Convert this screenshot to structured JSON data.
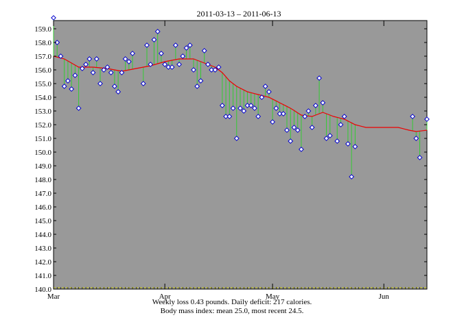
{
  "chart_data": {
    "type": "line",
    "title": "2011-03-13 – 2011-06-13",
    "footer": [
      "Weekly loss 0.43 pounds.  Daily deficit: 217 calories.",
      "Body mass index: mean 25.0, most recent 24.5."
    ],
    "xlim": [
      "2011-03-01",
      "2011-06-13"
    ],
    "ylim": [
      140.0,
      159.6
    ],
    "x_ticks": [
      {
        "date": "2011-03-01",
        "label": "Mar"
      },
      {
        "date": "2011-04-01",
        "label": "Apr"
      },
      {
        "date": "2011-05-01",
        "label": "May"
      },
      {
        "date": "2011-06-01",
        "label": "Jun"
      }
    ],
    "y_ticks": [
      "140.0",
      "141.0",
      "142.0",
      "143.0",
      "144.0",
      "145.0",
      "146.0",
      "147.0",
      "148.0",
      "149.0",
      "150.0",
      "151.0",
      "152.0",
      "153.0",
      "154.0",
      "155.0",
      "156.0",
      "157.0",
      "158.0",
      "159.0"
    ],
    "baseline": 140.1,
    "colors": {
      "background": "#999999",
      "trend": "#ee0000",
      "stem": "#33cc33",
      "marker_fill": "#ffffff",
      "marker_edge": "#0000cc",
      "baseline": "#cccc00"
    },
    "series": [
      {
        "kind": "scatter",
        "points": [
          [
            "2011-03-01",
            159.8
          ],
          [
            "2011-03-02",
            158.0
          ],
          [
            "2011-03-03",
            157.0
          ],
          [
            "2011-03-04",
            154.8
          ],
          [
            "2011-03-05",
            155.2
          ],
          [
            "2011-03-06",
            154.6
          ],
          [
            "2011-03-07",
            155.6
          ],
          [
            "2011-03-08",
            153.2
          ],
          [
            "2011-03-09",
            156.1
          ],
          [
            "2011-03-10",
            156.4
          ],
          [
            "2011-03-11",
            156.8
          ],
          [
            "2011-03-12",
            155.8
          ],
          [
            "2011-03-13",
            156.8
          ],
          [
            "2011-03-14",
            155.0
          ],
          [
            "2011-03-15",
            156.0
          ],
          [
            "2011-03-16",
            156.2
          ],
          [
            "2011-03-17",
            155.8
          ],
          [
            "2011-03-18",
            154.8
          ],
          [
            "2011-03-19",
            154.4
          ],
          [
            "2011-03-20",
            155.8
          ],
          [
            "2011-03-21",
            156.8
          ],
          [
            "2011-03-22",
            156.6
          ],
          [
            "2011-03-23",
            157.2
          ],
          [
            "2011-03-26",
            155.0
          ],
          [
            "2011-03-27",
            157.8
          ],
          [
            "2011-03-28",
            156.4
          ],
          [
            "2011-03-29",
            158.2
          ],
          [
            "2011-03-30",
            158.8
          ],
          [
            "2011-03-31",
            157.2
          ],
          [
            "2011-04-01",
            156.4
          ],
          [
            "2011-04-02",
            156.2
          ],
          [
            "2011-04-03",
            156.2
          ],
          [
            "2011-04-04",
            157.8
          ],
          [
            "2011-04-05",
            156.4
          ],
          [
            "2011-04-06",
            157.0
          ],
          [
            "2011-04-07",
            157.6
          ],
          [
            "2011-04-08",
            157.8
          ],
          [
            "2011-04-09",
            156.0
          ],
          [
            "2011-04-10",
            154.8
          ],
          [
            "2011-04-11",
            155.2
          ],
          [
            "2011-04-12",
            157.4
          ],
          [
            "2011-04-13",
            156.4
          ],
          [
            "2011-04-14",
            156.0
          ],
          [
            "2011-04-15",
            156.0
          ],
          [
            "2011-04-16",
            156.2
          ],
          [
            "2011-04-17",
            153.4
          ],
          [
            "2011-04-18",
            152.6
          ],
          [
            "2011-04-19",
            152.6
          ],
          [
            "2011-04-20",
            153.2
          ],
          [
            "2011-04-21",
            151.0
          ],
          [
            "2011-04-22",
            153.2
          ],
          [
            "2011-04-23",
            153.0
          ],
          [
            "2011-04-24",
            153.4
          ],
          [
            "2011-04-25",
            153.4
          ],
          [
            "2011-04-26",
            153.2
          ],
          [
            "2011-04-27",
            152.6
          ],
          [
            "2011-04-28",
            154.0
          ],
          [
            "2011-04-29",
            154.8
          ],
          [
            "2011-04-30",
            154.4
          ],
          [
            "2011-05-01",
            152.2
          ],
          [
            "2011-05-02",
            153.2
          ],
          [
            "2011-05-03",
            152.8
          ],
          [
            "2011-05-04",
            152.8
          ],
          [
            "2011-05-05",
            151.6
          ],
          [
            "2011-05-06",
            150.8
          ],
          [
            "2011-05-07",
            151.8
          ],
          [
            "2011-05-08",
            151.6
          ],
          [
            "2011-05-09",
            150.2
          ],
          [
            "2011-05-10",
            152.6
          ],
          [
            "2011-05-11",
            153.0
          ],
          [
            "2011-05-12",
            151.8
          ],
          [
            "2011-05-13",
            153.4
          ],
          [
            "2011-05-14",
            155.4
          ],
          [
            "2011-05-15",
            153.6
          ],
          [
            "2011-05-16",
            151.0
          ],
          [
            "2011-05-17",
            151.2
          ],
          [
            "2011-05-19",
            150.8
          ],
          [
            "2011-05-20",
            152.0
          ],
          [
            "2011-05-21",
            152.6
          ],
          [
            "2011-05-22",
            150.6
          ],
          [
            "2011-05-23",
            148.2
          ],
          [
            "2011-05-24",
            150.4
          ],
          [
            "2011-06-09",
            152.6
          ],
          [
            "2011-06-10",
            151.0
          ],
          [
            "2011-06-11",
            149.6
          ],
          [
            "2011-06-13",
            152.4
          ]
        ]
      },
      {
        "kind": "line",
        "points": [
          [
            "2011-03-01",
            157.0
          ],
          [
            "2011-03-04",
            156.8
          ],
          [
            "2011-03-08",
            156.2
          ],
          [
            "2011-03-12",
            156.2
          ],
          [
            "2011-03-16",
            156.1
          ],
          [
            "2011-03-20",
            155.9
          ],
          [
            "2011-03-24",
            156.1
          ],
          [
            "2011-03-28",
            156.3
          ],
          [
            "2011-04-01",
            156.6
          ],
          [
            "2011-04-05",
            156.8
          ],
          [
            "2011-04-09",
            156.8
          ],
          [
            "2011-04-13",
            156.4
          ],
          [
            "2011-04-15",
            156.2
          ],
          [
            "2011-04-17",
            155.8
          ],
          [
            "2011-04-19",
            155.2
          ],
          [
            "2011-04-21",
            154.8
          ],
          [
            "2011-04-24",
            154.4
          ],
          [
            "2011-04-27",
            154.2
          ],
          [
            "2011-04-30",
            154.0
          ],
          [
            "2011-05-03",
            153.6
          ],
          [
            "2011-05-06",
            153.2
          ],
          [
            "2011-05-09",
            152.7
          ],
          [
            "2011-05-12",
            152.6
          ],
          [
            "2011-05-15",
            152.9
          ],
          [
            "2011-05-18",
            152.6
          ],
          [
            "2011-05-21",
            152.4
          ],
          [
            "2011-05-24",
            152.0
          ],
          [
            "2011-05-27",
            151.8
          ],
          [
            "2011-06-01",
            151.8
          ],
          [
            "2011-06-05",
            151.8
          ],
          [
            "2011-06-08",
            151.6
          ],
          [
            "2011-06-10",
            151.5
          ],
          [
            "2011-06-13",
            151.6
          ]
        ]
      }
    ]
  }
}
